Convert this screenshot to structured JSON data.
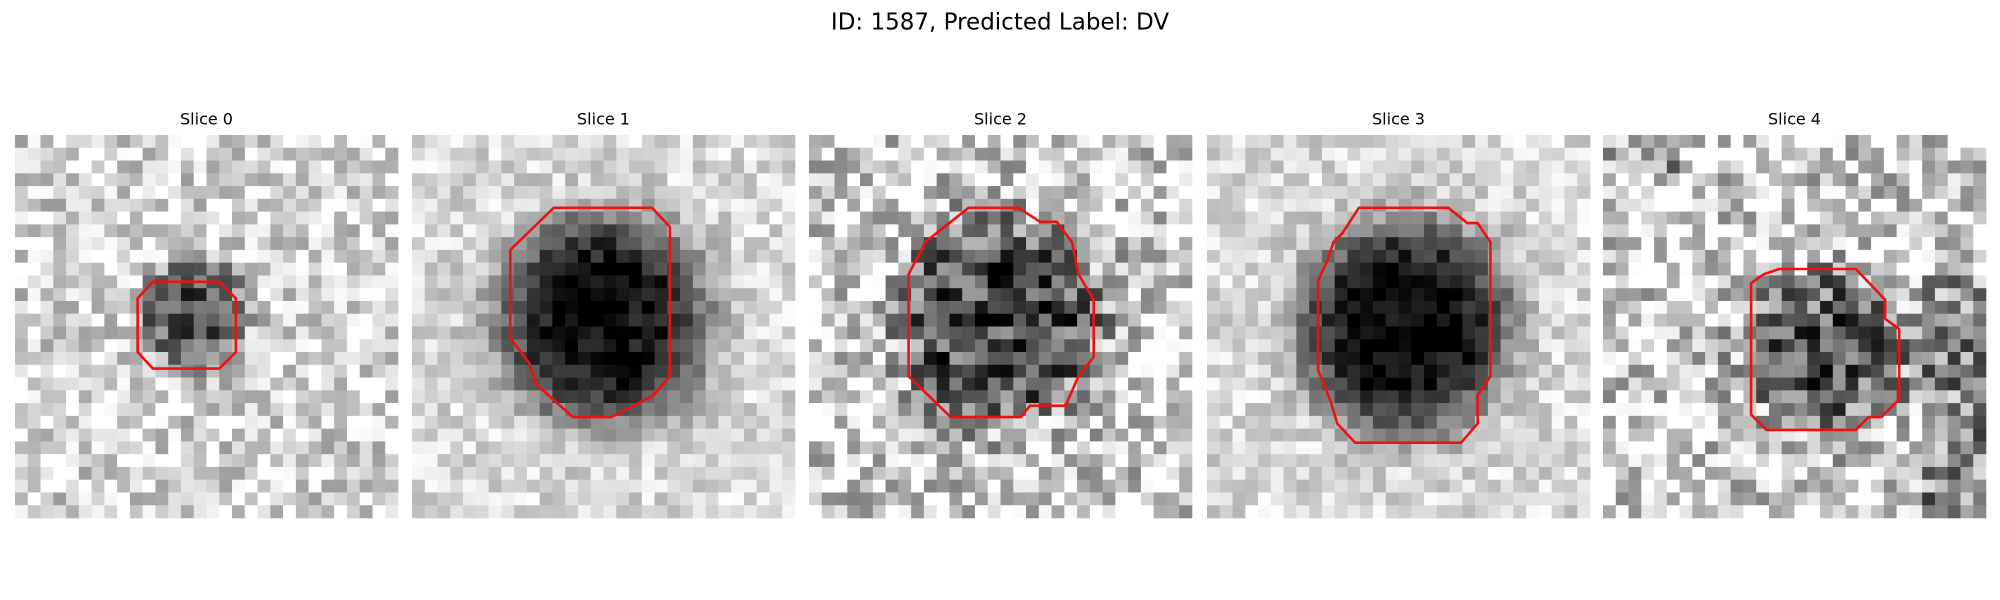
{
  "title": "ID: 1587, Predicted Label: DV",
  "panels": [
    {
      "title": "Slice 0"
    },
    {
      "title": "Slice 1"
    },
    {
      "title": "Slice 2"
    },
    {
      "title": "Slice 3"
    },
    {
      "title": "Slice 4"
    }
  ]
}
